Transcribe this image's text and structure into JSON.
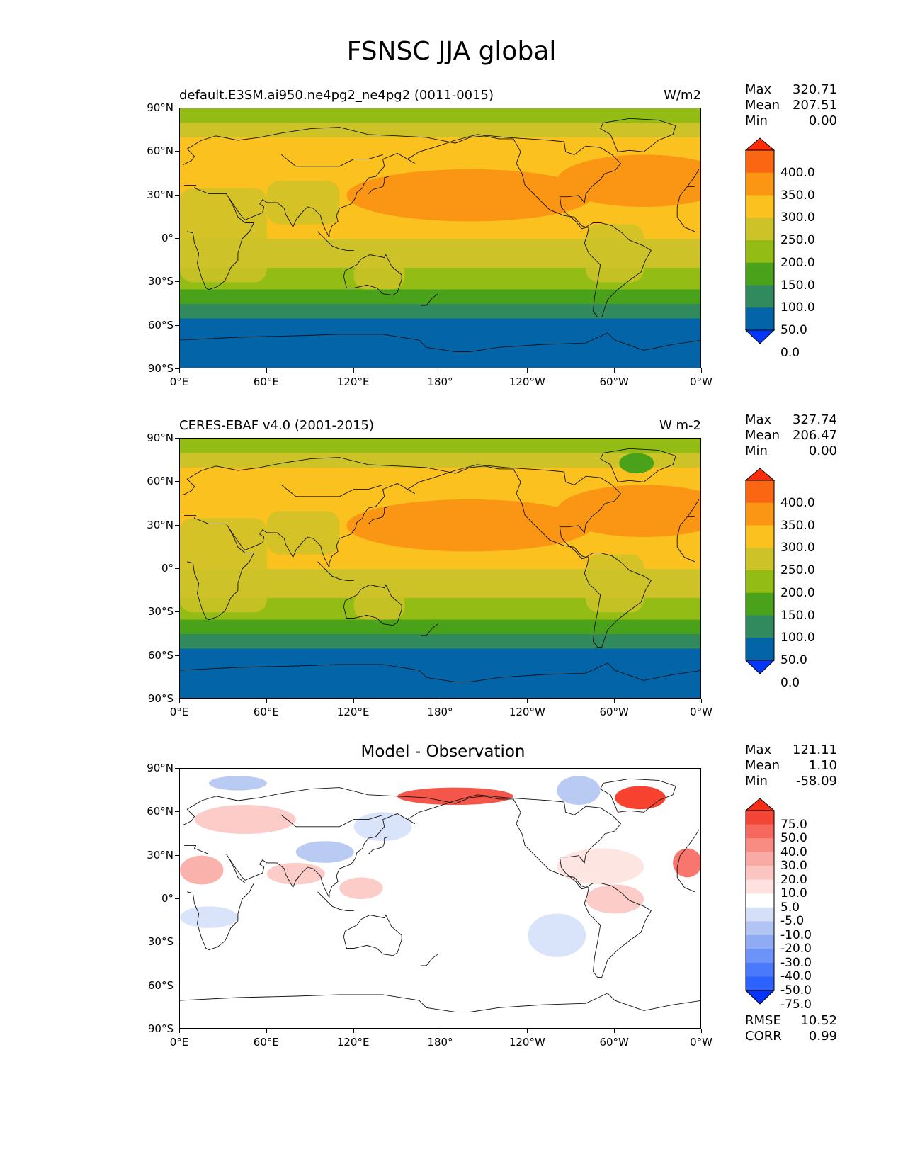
{
  "figure_title": "FSNSC JJA global",
  "panels": [
    {
      "left_title": "default.E3SM.ai950.ne4pg2_ne4pg2 (0011-0015)",
      "right_title": "W/m2",
      "center_title": "",
      "stats": [
        {
          "label": "Max",
          "value": "320.71"
        },
        {
          "label": "Mean",
          "value": "207.51"
        },
        {
          "label": "Min",
          "value": "0.00"
        }
      ],
      "colorbar_labels": [
        "400.0",
        "350.0",
        "300.0",
        "250.0",
        "200.0",
        "150.0",
        "100.0",
        "50.0",
        "0.0"
      ]
    },
    {
      "left_title": "CERES-EBAF v4.0 (2001-2015)",
      "right_title": "W m-2",
      "center_title": "",
      "stats": [
        {
          "label": "Max",
          "value": "327.74"
        },
        {
          "label": "Mean",
          "value": "206.47"
        },
        {
          "label": "Min",
          "value": "0.00"
        }
      ],
      "colorbar_labels": [
        "400.0",
        "350.0",
        "300.0",
        "250.0",
        "200.0",
        "150.0",
        "100.0",
        "50.0",
        "0.0"
      ]
    },
    {
      "left_title": "",
      "right_title": "",
      "center_title": "Model - Observation",
      "stats": [
        {
          "label": "Max",
          "value": "121.11"
        },
        {
          "label": "Mean",
          "value": "1.10"
        },
        {
          "label": "Min",
          "value": "-58.09"
        }
      ],
      "colorbar_labels": [
        "75.0",
        "50.0",
        "40.0",
        "30.0",
        "20.0",
        "10.0",
        "5.0",
        "-5.0",
        "-10.0",
        "-20.0",
        "-30.0",
        "-40.0",
        "-50.0",
        "-75.0"
      ],
      "extra_stats": [
        {
          "label": "RMSE",
          "value": "10.52"
        },
        {
          "label": "CORR",
          "value": "0.99"
        }
      ]
    }
  ],
  "axes": {
    "y_ticks": [
      "90°N",
      "60°N",
      "30°N",
      "0°",
      "30°S",
      "60°S",
      "90°S"
    ],
    "x_ticks": [
      "0°E",
      "60°E",
      "120°E",
      "180°",
      "120°W",
      "60°W",
      "0°W"
    ]
  },
  "colors": {
    "absolute": [
      "#0337f9",
      "#0365a7",
      "#318a5e",
      "#4aa21a",
      "#93bd15",
      "#cdc228",
      "#fbc11e",
      "#fb9614",
      "#fa6612",
      "#fd2d0a"
    ],
    "difference": [
      "#0532ff",
      "#2c63ff",
      "#4a79fc",
      "#6b93f8",
      "#8eabf3",
      "#b2c5f2",
      "#d5e0f8",
      "#ffffff",
      "#fde2df",
      "#fbc6c2",
      "#f9aaa4",
      "#f88b82",
      "#f6685e",
      "#f44436",
      "#f52d18"
    ]
  },
  "chart_data": [
    {
      "type": "heatmap",
      "title": "default.E3SM.ai950.ne4pg2_ne4pg2 (0011-0015)",
      "units": "W/m2",
      "x_range": [
        0,
        360
      ],
      "y_range": [
        -90,
        90
      ],
      "levels": [
        0,
        50,
        100,
        150,
        200,
        250,
        300,
        350,
        400
      ],
      "zonal_mean_bands": [
        {
          "lat": [
            80,
            90
          ],
          "value": 170
        },
        {
          "lat": [
            70,
            80
          ],
          "value": 200
        },
        {
          "lat": [
            45,
            70
          ],
          "value": 265
        },
        {
          "lat": [
            15,
            45
          ],
          "value": 270
        },
        {
          "lat": [
            0,
            15
          ],
          "value": 260
        },
        {
          "lat": [
            -10,
            0
          ],
          "value": 230
        },
        {
          "lat": [
            -20,
            -10
          ],
          "value": 210
        },
        {
          "lat": [
            -35,
            -20
          ],
          "value": 170
        },
        {
          "lat": [
            -45,
            -35
          ],
          "value": 130
        },
        {
          "lat": [
            -55,
            -45
          ],
          "value": 90
        },
        {
          "lat": [
            -85,
            -55
          ],
          "value": 30
        },
        {
          "lat": [
            -90,
            -85
          ],
          "value": 0
        }
      ],
      "features": [
        {
          "name": "North Pacific maximum",
          "value": 310
        },
        {
          "name": "North Atlantic maximum",
          "value": 305
        }
      ],
      "stats": {
        "max": 320.71,
        "mean": 207.51,
        "min": 0.0
      }
    },
    {
      "type": "heatmap",
      "title": "CERES-EBAF v4.0 (2001-2015)",
      "units": "W m-2",
      "x_range": [
        0,
        360
      ],
      "y_range": [
        -90,
        90
      ],
      "levels": [
        0,
        50,
        100,
        150,
        200,
        250,
        300,
        350,
        400
      ],
      "zonal_mean_bands": [
        {
          "lat": [
            80,
            90
          ],
          "value": 170
        },
        {
          "lat": [
            70,
            80
          ],
          "value": 230
        },
        {
          "lat": [
            45,
            70
          ],
          "value": 265
        },
        {
          "lat": [
            15,
            45
          ],
          "value": 275
        },
        {
          "lat": [
            0,
            15
          ],
          "value": 260
        },
        {
          "lat": [
            -10,
            0
          ],
          "value": 230
        },
        {
          "lat": [
            -20,
            -10
          ],
          "value": 210
        },
        {
          "lat": [
            -35,
            -20
          ],
          "value": 170
        },
        {
          "lat": [
            -45,
            -35
          ],
          "value": 130
        },
        {
          "lat": [
            -55,
            -45
          ],
          "value": 90
        },
        {
          "lat": [
            -85,
            -55
          ],
          "value": 30
        },
        {
          "lat": [
            -90,
            -85
          ],
          "value": 0
        }
      ],
      "features": [
        {
          "name": "Greenland minimum",
          "value": 120
        },
        {
          "name": "North Pacific maximum",
          "value": 310
        },
        {
          "name": "North Atlantic maximum",
          "value": 310
        }
      ],
      "stats": {
        "max": 327.74,
        "mean": 206.47,
        "min": 0.0
      }
    },
    {
      "type": "heatmap",
      "title": "Model - Observation",
      "x_range": [
        0,
        360
      ],
      "y_range": [
        -90,
        90
      ],
      "levels": [
        -75,
        -50,
        -40,
        -30,
        -20,
        -10,
        -5,
        5,
        10,
        20,
        30,
        40,
        50,
        75
      ],
      "features": [
        {
          "name": "Greenland",
          "value": 80
        },
        {
          "name": "Arctic near 180°",
          "value": 60
        },
        {
          "name": "North Atlantic (30°N)",
          "value": 40
        },
        {
          "name": "Arctic Canada",
          "value": -20
        },
        {
          "name": "Central Asia",
          "value": -15
        },
        {
          "name": "Eurasia mid-latitudes",
          "value": 15
        },
        {
          "name": "Southern Ocean",
          "value": 0
        }
      ],
      "stats": {
        "max": 121.11,
        "mean": 1.1,
        "min": -58.09,
        "rmse": 10.52,
        "corr": 0.99
      }
    }
  ]
}
